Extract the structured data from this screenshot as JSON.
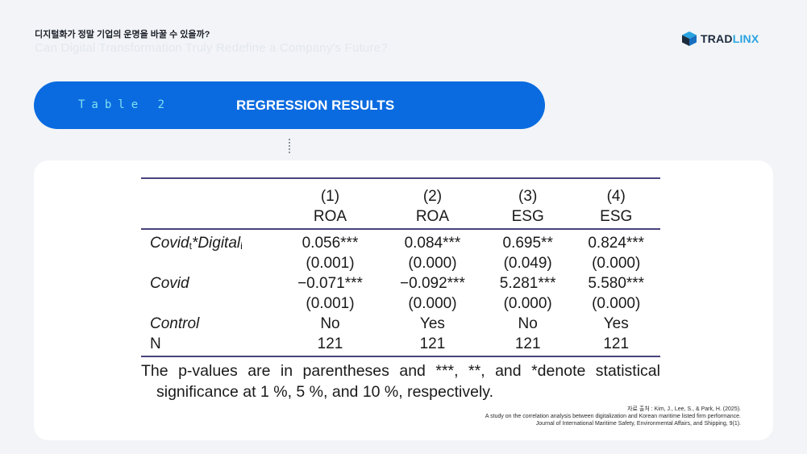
{
  "header": {
    "title_ko": "디지털화가 정말 기업의 운명을 바꿀 수 있을까?",
    "title_en": "Can Digital Transformation Truly Redefine a Company's Future?"
  },
  "brand": {
    "name_part1": "TRAD",
    "name_part2": "LINX",
    "colors": {
      "dark": "#1c2a3d",
      "accent": "#2aa3e0"
    }
  },
  "table_banner": {
    "number_label": "Table 2",
    "title": "REGRESSION RESULTS",
    "background": "#0a6be0"
  },
  "regression": {
    "columns": [
      {
        "num": "(1)",
        "dep": "ROA"
      },
      {
        "num": "(2)",
        "dep": "ROA"
      },
      {
        "num": "(3)",
        "dep": "ESG"
      },
      {
        "num": "(4)",
        "dep": "ESG"
      }
    ],
    "row1": {
      "label_main": "Covid",
      "label_sub1": "t",
      "label_mid": "*Digital",
      "label_sub2": "i",
      "coefs": [
        "0.056***",
        "0.084***",
        "0.695**",
        "0.824***"
      ],
      "pvals": [
        "(0.001)",
        "(0.000)",
        "(0.049)",
        "(0.000)"
      ]
    },
    "row2": {
      "label": "Covid",
      "coefs": [
        "−0.071***",
        "−0.092***",
        "5.281***",
        "5.580***"
      ],
      "pvals": [
        "(0.001)",
        "(0.000)",
        "(0.000)",
        "(0.000)"
      ]
    },
    "control": {
      "label": "Control",
      "values": [
        "No",
        "Yes",
        "No",
        "Yes"
      ]
    },
    "n": {
      "label": "N",
      "values": [
        "121",
        "121",
        "121",
        "121"
      ]
    },
    "note_line1": "The p-values are in parentheses and ***, **, and *denote statistical",
    "note_line2": "significance at 1 %, 5 %, and 10 %, respectively."
  },
  "source": {
    "line1": "자료 출처 : Kim, J., Lee, S., & Park, H. (2025).",
    "line2": "A study on the correlation analysis between digitalization and Korean maritime listed firm performance.",
    "line3": "Journal of International Maritime Safety, Environmental Affairs, and Shipping, 9(1)."
  }
}
